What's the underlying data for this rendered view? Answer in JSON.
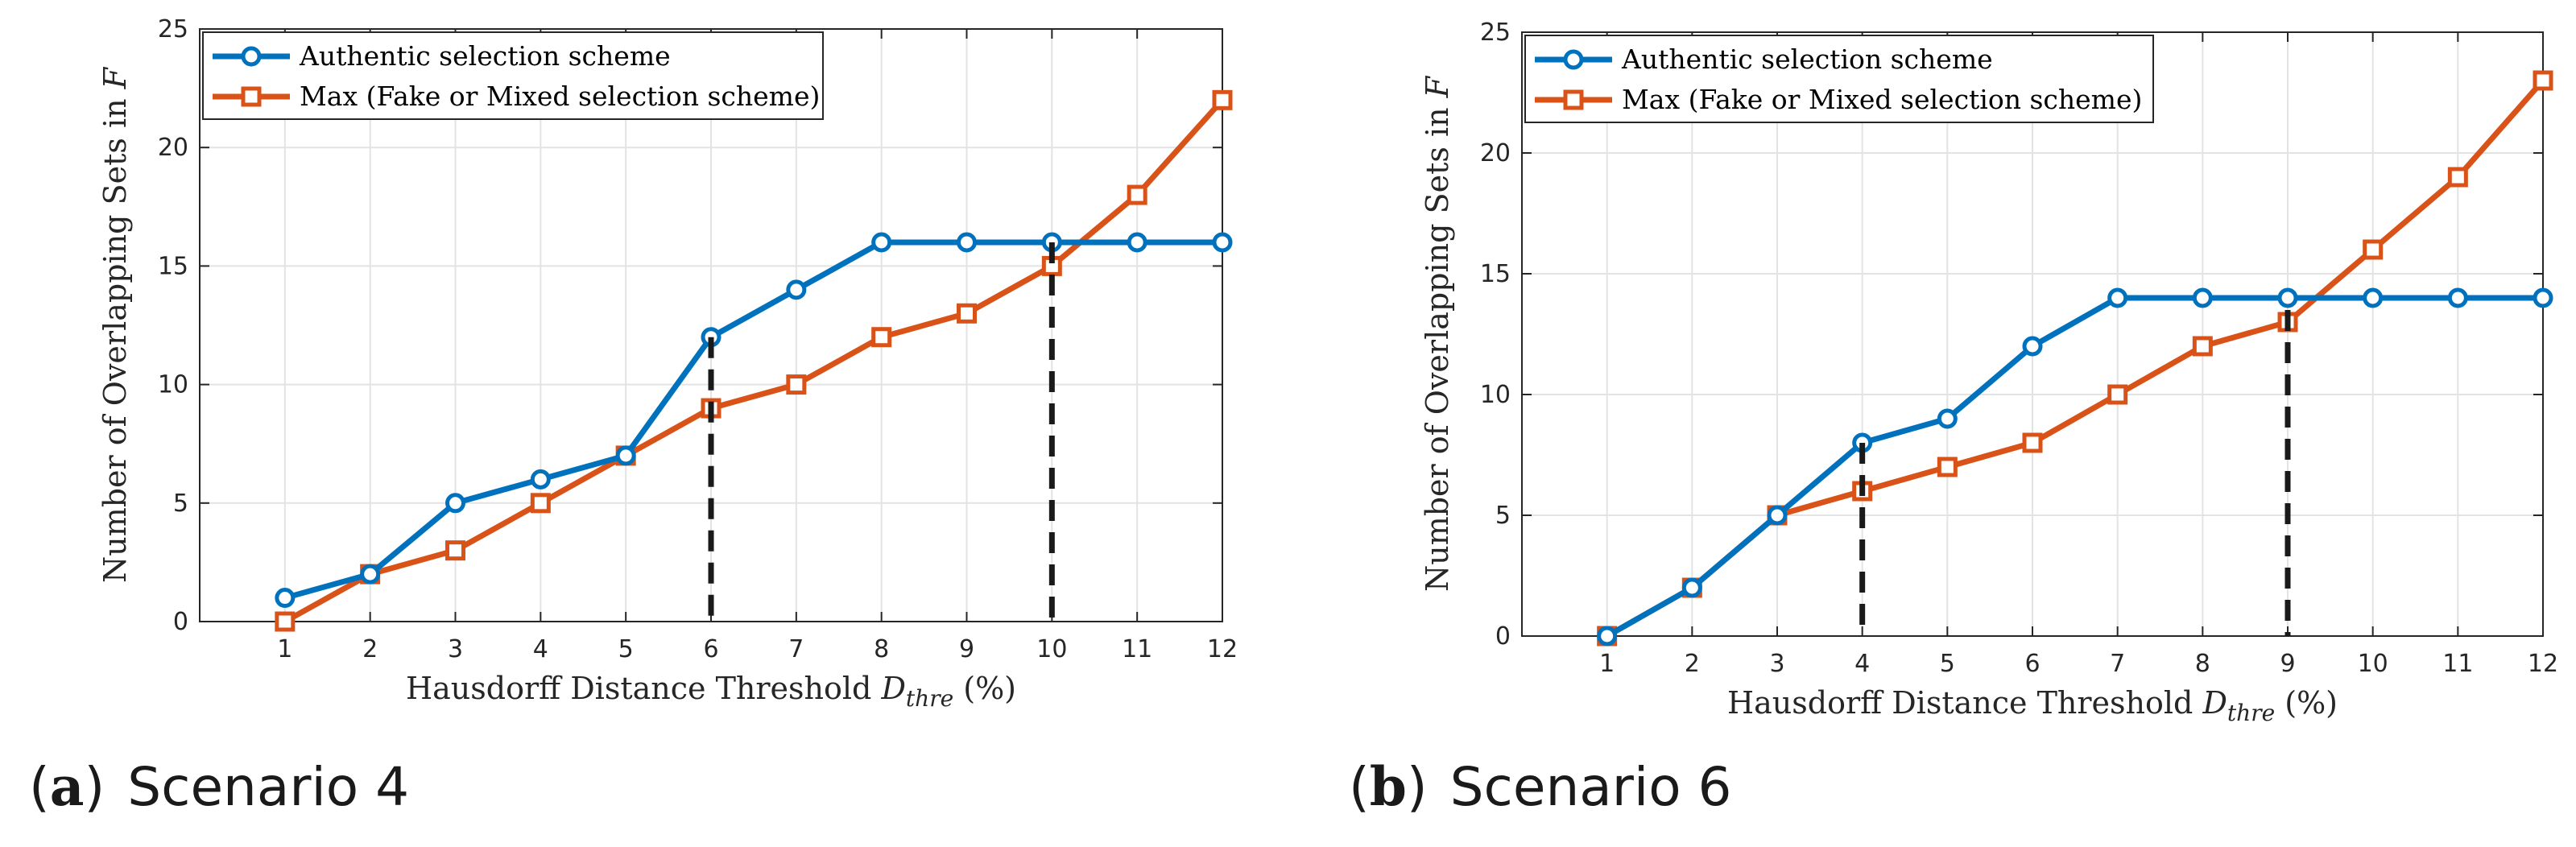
{
  "chart_data": [
    {
      "type": "line",
      "caption_letter": "a",
      "caption_text": "Scenario 4",
      "xlabel_main": "Hausdorff Distance Threshold ",
      "xlabel_sym": "D",
      "xlabel_sub": "thre",
      "xlabel_unit": " (%)",
      "ylabel_main": "Number of Overlapping Sets in ",
      "ylabel_sym": "F",
      "xlim": [
        0,
        12
      ],
      "ylim": [
        0,
        25
      ],
      "xticks": [
        1,
        2,
        3,
        4,
        5,
        6,
        7,
        8,
        9,
        10,
        11,
        12
      ],
      "yticks": [
        0,
        5,
        10,
        15,
        20,
        25
      ],
      "grid": true,
      "legend_position": "top-left",
      "x": [
        1,
        2,
        3,
        4,
        5,
        6,
        7,
        8,
        9,
        10,
        11,
        12
      ],
      "series": [
        {
          "name": "Authentic selection scheme",
          "color": "#0072BD",
          "marker": "circle",
          "values": [
            1,
            2,
            5,
            6,
            7,
            12,
            14,
            16,
            16,
            16,
            16,
            16
          ]
        },
        {
          "name": "Max (Fake or Mixed selection scheme)",
          "color": "#D95319",
          "marker": "square",
          "values": [
            0,
            2,
            3,
            5,
            7,
            9,
            10,
            12,
            13,
            15,
            18,
            22
          ]
        }
      ],
      "dashed_markers": [
        {
          "x": 6,
          "y": 12
        },
        {
          "x": 10,
          "y": 16
        }
      ]
    },
    {
      "type": "line",
      "caption_letter": "b",
      "caption_text": "Scenario 6",
      "xlabel_main": "Hausdorff Distance Threshold ",
      "xlabel_sym": "D",
      "xlabel_sub": "thre",
      "xlabel_unit": " (%)",
      "ylabel_main": "Number of Overlapping Sets in ",
      "ylabel_sym": "F",
      "xlim": [
        0,
        12
      ],
      "ylim": [
        0,
        25
      ],
      "xticks": [
        1,
        2,
        3,
        4,
        5,
        6,
        7,
        8,
        9,
        10,
        11,
        12
      ],
      "yticks": [
        0,
        5,
        10,
        15,
        20,
        25
      ],
      "grid": true,
      "legend_position": "top-left",
      "x": [
        1,
        2,
        3,
        4,
        5,
        6,
        7,
        8,
        9,
        10,
        11,
        12
      ],
      "series": [
        {
          "name": "Authentic selection scheme",
          "color": "#0072BD",
          "marker": "circle",
          "values": [
            0,
            2,
            5,
            8,
            9,
            12,
            14,
            14,
            14,
            14,
            14,
            14
          ]
        },
        {
          "name": "Max (Fake or Mixed selection scheme)",
          "color": "#D95319",
          "marker": "square",
          "values": [
            0,
            2,
            5,
            6,
            7,
            8,
            10,
            12,
            13,
            16,
            19,
            23
          ]
        }
      ],
      "dashed_markers": [
        {
          "x": 4,
          "y": 8
        },
        {
          "x": 9,
          "y": 13.5
        }
      ]
    }
  ]
}
